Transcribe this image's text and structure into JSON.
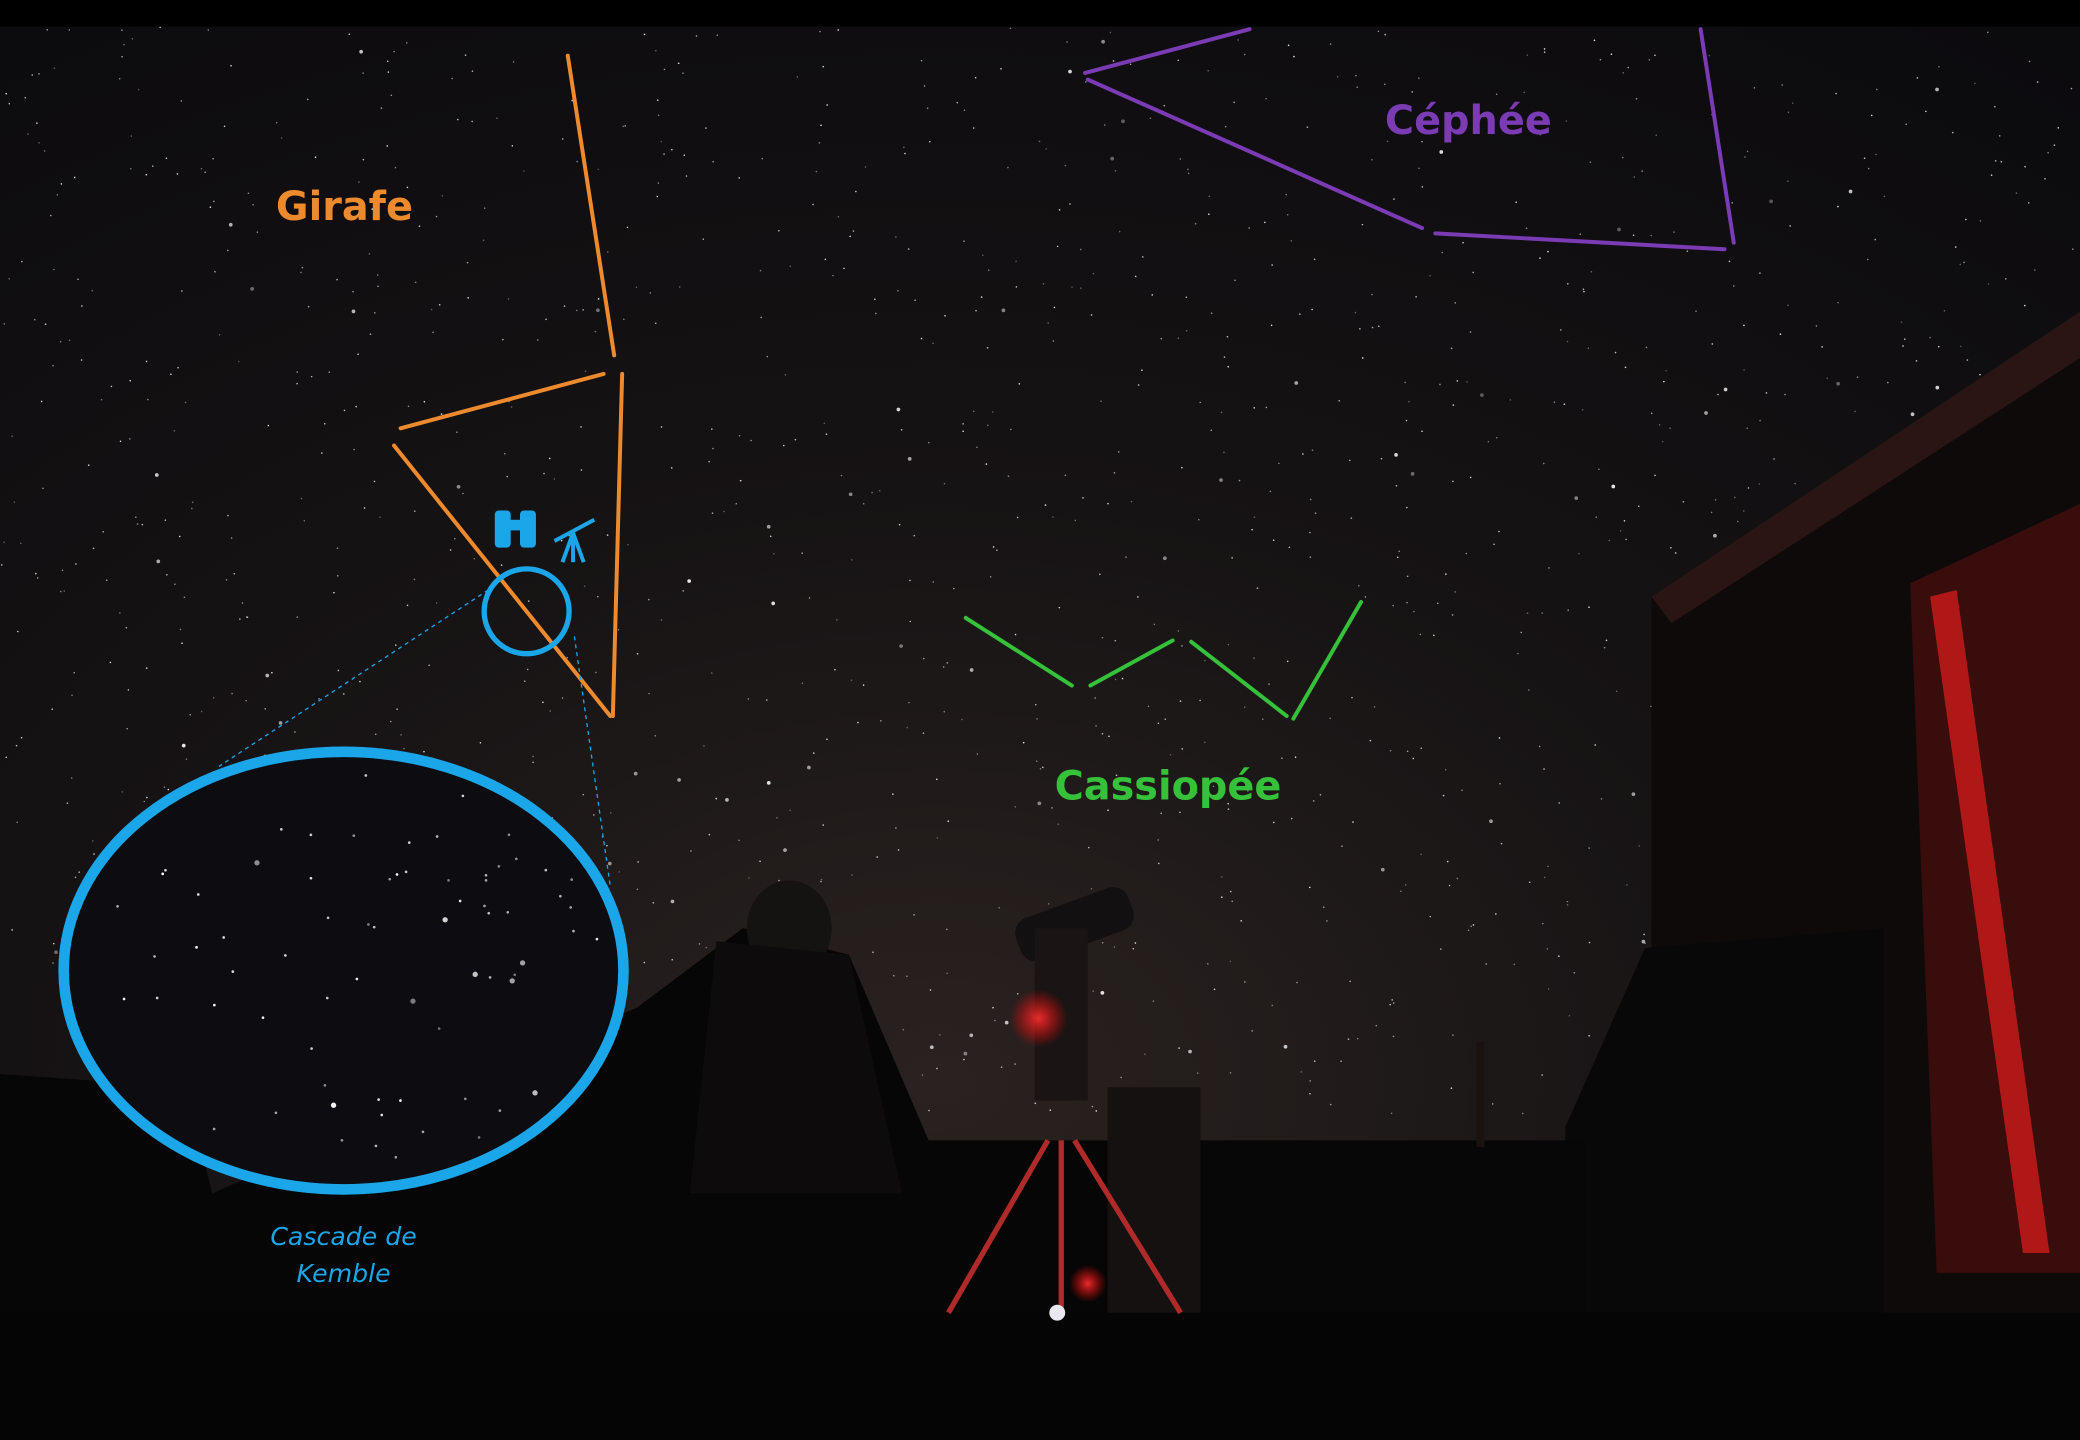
{
  "labels": {
    "girafe": "Girafe",
    "cephee": "Céphée",
    "cassiopee": "Cassiopée"
  },
  "caption": [
    "Cascade de",
    "Kemble"
  ]
}
